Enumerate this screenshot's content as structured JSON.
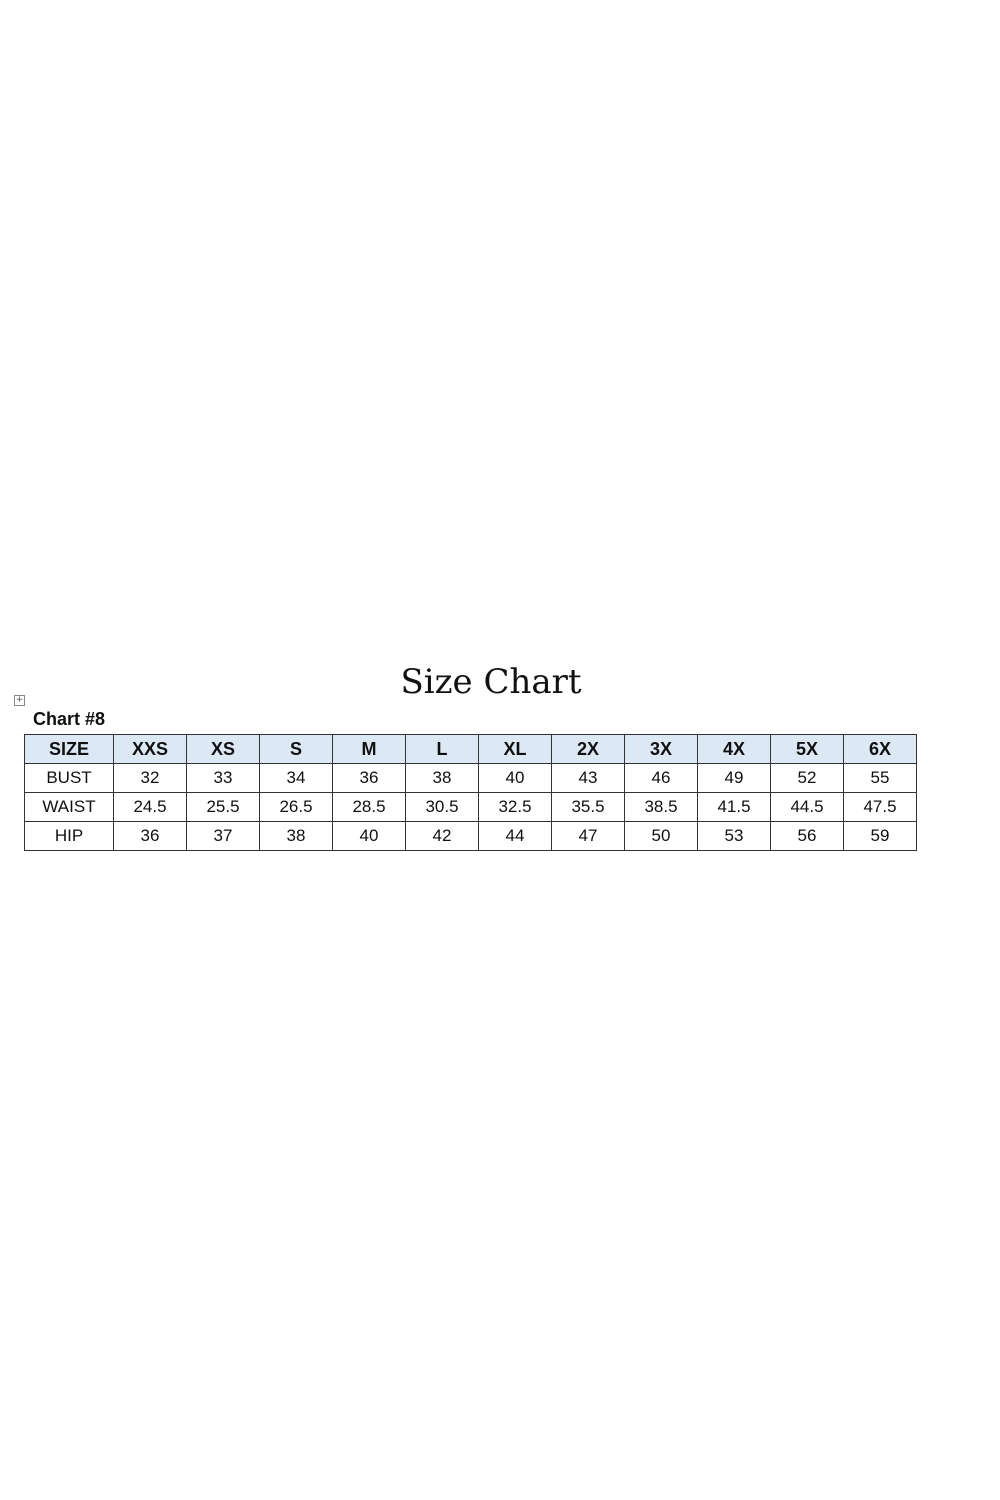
{
  "title": "Size Chart",
  "subtitle": "Chart #8",
  "chart_data": {
    "type": "table",
    "columns": [
      "SIZE",
      "XXS",
      "XS",
      "S",
      "M",
      "L",
      "XL",
      "2X",
      "3X",
      "4X",
      "5X",
      "6X"
    ],
    "rows": [
      {
        "label": "BUST",
        "values": [
          "32",
          "33",
          "34",
          "36",
          "38",
          "40",
          "43",
          "46",
          "49",
          "52",
          "55"
        ]
      },
      {
        "label": "WAIST",
        "values": [
          "24.5",
          "25.5",
          "26.5",
          "28.5",
          "30.5",
          "32.5",
          "35.5",
          "38.5",
          "41.5",
          "44.5",
          "47.5"
        ]
      },
      {
        "label": "HIP",
        "values": [
          "36",
          "37",
          "38",
          "40",
          "42",
          "44",
          "47",
          "50",
          "53",
          "56",
          "59"
        ]
      }
    ],
    "header_color": "#dce9f5"
  }
}
